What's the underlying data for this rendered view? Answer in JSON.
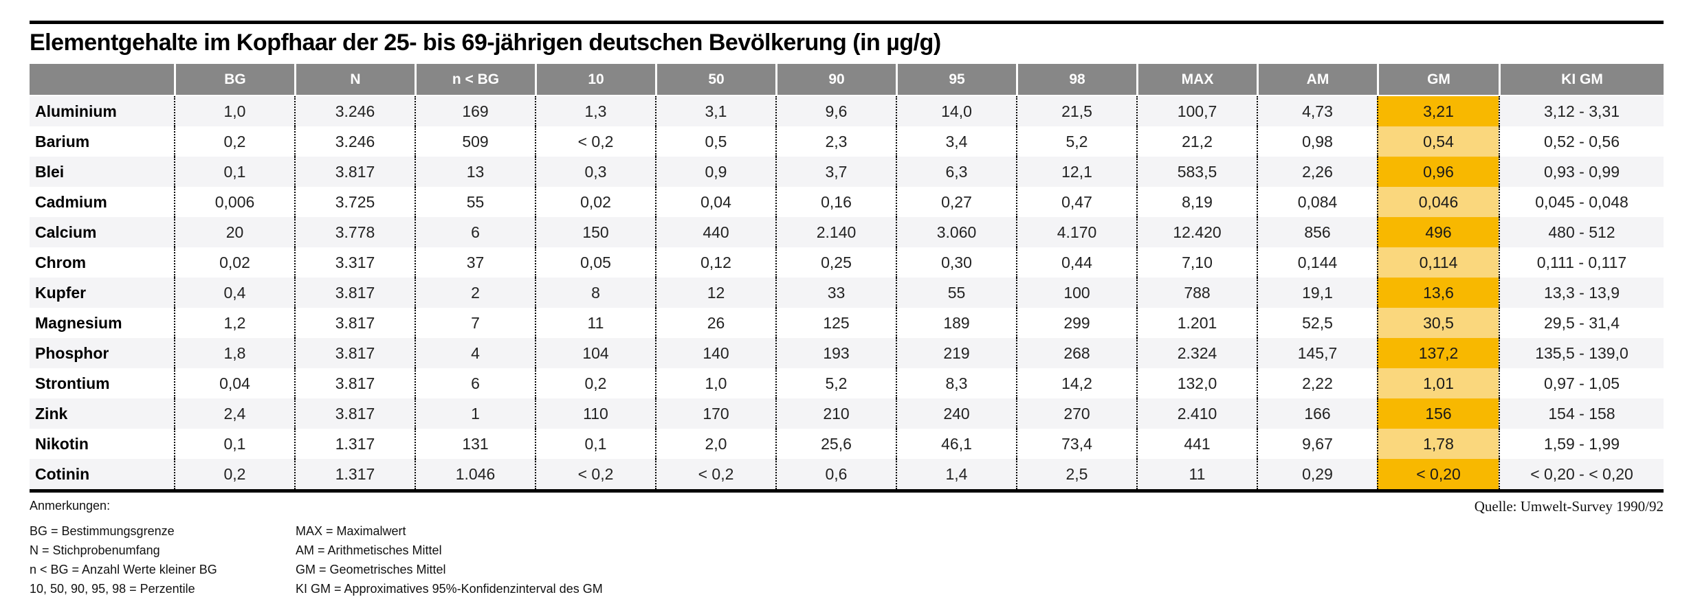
{
  "chart_data": {
    "type": "table",
    "title": "Elementgehalte im Kopfhaar der 25- bis 69-jährigen deutschen Bevölkerung (in µg/g)",
    "columns": [
      "",
      "BG",
      "N",
      "n < BG",
      "10",
      "50",
      "90",
      "95",
      "98",
      "MAX",
      "AM",
      "GM",
      "KI GM"
    ],
    "highlight_column": "GM",
    "rows": [
      [
        "Aluminium",
        "1,0",
        "3.246",
        "169",
        "1,3",
        "3,1",
        "9,6",
        "14,0",
        "21,5",
        "100,7",
        "4,73",
        "3,21",
        "3,12 - 3,31"
      ],
      [
        "Barium",
        "0,2",
        "3.246",
        "509",
        "< 0,2",
        "0,5",
        "2,3",
        "3,4",
        "5,2",
        "21,2",
        "0,98",
        "0,54",
        "0,52 - 0,56"
      ],
      [
        "Blei",
        "0,1",
        "3.817",
        "13",
        "0,3",
        "0,9",
        "3,7",
        "6,3",
        "12,1",
        "583,5",
        "2,26",
        "0,96",
        "0,93 - 0,99"
      ],
      [
        "Cadmium",
        "0,006",
        "3.725",
        "55",
        "0,02",
        "0,04",
        "0,16",
        "0,27",
        "0,47",
        "8,19",
        "0,084",
        "0,046",
        "0,045 - 0,048"
      ],
      [
        "Calcium",
        "20",
        "3.778",
        "6",
        "150",
        "440",
        "2.140",
        "3.060",
        "4.170",
        "12.420",
        "856",
        "496",
        "480 - 512"
      ],
      [
        "Chrom",
        "0,02",
        "3.317",
        "37",
        "0,05",
        "0,12",
        "0,25",
        "0,30",
        "0,44",
        "7,10",
        "0,144",
        "0,114",
        "0,111 - 0,117"
      ],
      [
        "Kupfer",
        "0,4",
        "3.817",
        "2",
        "8",
        "12",
        "33",
        "55",
        "100",
        "788",
        "19,1",
        "13,6",
        "13,3 - 13,9"
      ],
      [
        "Magnesium",
        "1,2",
        "3.817",
        "7",
        "11",
        "26",
        "125",
        "189",
        "299",
        "1.201",
        "52,5",
        "30,5",
        "29,5 - 31,4"
      ],
      [
        "Phosphor",
        "1,8",
        "3.817",
        "4",
        "104",
        "140",
        "193",
        "219",
        "268",
        "2.324",
        "145,7",
        "137,2",
        "135,5 - 139,0"
      ],
      [
        "Strontium",
        "0,04",
        "3.817",
        "6",
        "0,2",
        "1,0",
        "5,2",
        "8,3",
        "14,2",
        "132,0",
        "2,22",
        "1,01",
        "0,97 - 1,05"
      ],
      [
        "Zink",
        "2,4",
        "3.817",
        "1",
        "110",
        "170",
        "210",
        "240",
        "270",
        "2.410",
        "166",
        "156",
        "154 - 158"
      ],
      [
        "Nikotin",
        "0,1",
        "1.317",
        "131",
        "0,1",
        "2,0",
        "25,6",
        "46,1",
        "73,4",
        "441",
        "9,67",
        "1,78",
        "1,59 - 1,99"
      ],
      [
        "Cotinin",
        "0,2",
        "1.317",
        "1.046",
        "< 0,2",
        "< 0,2",
        "0,6",
        "1,4",
        "2,5",
        "11",
        "0,29",
        "< 0,20",
        "< 0,20 - < 0,20"
      ]
    ]
  },
  "notes": {
    "heading": "Anmerkungen:",
    "left": [
      "BG = Bestimmungsgrenze",
      "N = Stichprobenumfang",
      "n < BG = Anzahl Werte kleiner BG",
      "10, 50, 90, 95, 98 = Perzentile"
    ],
    "right": [
      "MAX = Maximalwert",
      "AM = Arithmetisches Mittel",
      "GM = Geometrisches Mittel",
      "KI GM = Approximatives 95%-Konfidenzinterval des GM"
    ]
  },
  "source": "Quelle: Umwelt-Survey 1990/92",
  "colors": {
    "header_bg": "#878787",
    "row_stripe": "#F4F4F6",
    "gm_dark": "#F8B800",
    "gm_light": "#FAD77D"
  }
}
